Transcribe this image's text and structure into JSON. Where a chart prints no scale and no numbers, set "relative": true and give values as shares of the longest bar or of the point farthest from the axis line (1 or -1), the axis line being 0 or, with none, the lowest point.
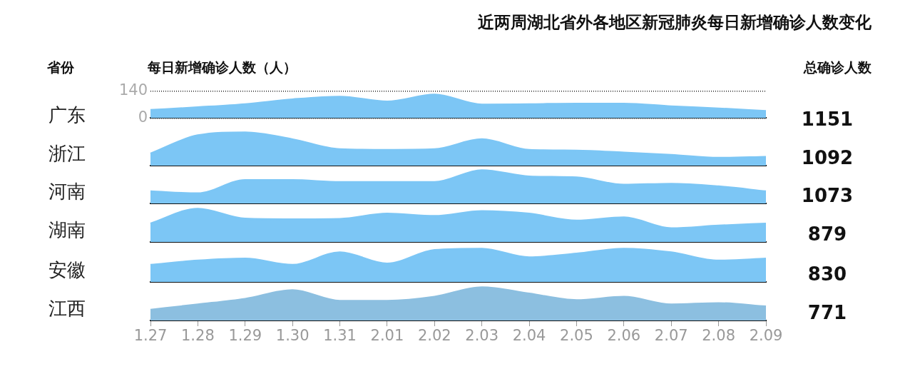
{
  "chart_data": [
    {
      "type": "area",
      "title": "近两周湖北省外各地区新冠肺炎每日新增确诊人数变化",
      "ylabel": "每日新增确诊人数（人）",
      "annotations": [
        "省份",
        "总确诊人数",
        "1151"
      ],
      "categories": [
        "1.27",
        "1.28",
        "1.29",
        "1.30",
        "1.31",
        "2.01",
        "2.02",
        "2.03",
        "2.04",
        "2.05",
        "2.06",
        "2.07",
        "2.08",
        "2.09"
      ],
      "ylim": [
        0,
        140
      ],
      "yticks": [
        0,
        140
      ],
      "grid": "y",
      "tick_labels": "y",
      "series": [
        {
          "name": "广东",
          "color": "#7cc6f5",
          "values": [
            41,
            55,
            71,
            96,
            110,
            85,
            121,
            69,
            71,
            74,
            74,
            60,
            49,
            36
          ]
        }
      ]
    },
    {
      "type": "area",
      "relative": true,
      "annotations": [
        "1092"
      ],
      "categories": [
        null,
        null,
        null,
        null,
        null,
        null,
        null,
        null,
        null,
        null,
        null,
        null,
        null,
        null
      ],
      "tick_labels": false,
      "series": [
        {
          "name": "浙江",
          "color": "#7cc6f5",
          "values": [
            0.36,
            0.91,
            1,
            0.79,
            0.49,
            0.47,
            0.49,
            0.79,
            0.47,
            0.45,
            0.39,
            0.32,
            0.23,
            0.26
          ]
        }
      ]
    },
    {
      "type": "area",
      "relative": true,
      "annotations": [
        "1073"
      ],
      "categories": [
        null,
        null,
        null,
        null,
        null,
        null,
        null,
        null,
        null,
        null,
        null,
        null,
        null,
        null
      ],
      "tick_labels": false,
      "series": [
        {
          "name": "河南",
          "color": "#7cc6f5",
          "values": [
            0.36,
            0.3,
            0.7,
            0.7,
            0.64,
            0.64,
            0.64,
            1,
            0.81,
            0.78,
            0.56,
            0.59,
            0.51,
            0.36
          ]
        }
      ]
    },
    {
      "type": "area",
      "relative": true,
      "annotations": [
        "879"
      ],
      "categories": [
        null,
        null,
        null,
        null,
        null,
        null,
        null,
        null,
        null,
        null,
        null,
        null,
        null,
        null
      ],
      "tick_labels": false,
      "series": [
        {
          "name": "湖南",
          "color": "#7cc6f5",
          "values": [
            0.55,
            1,
            0.7,
            0.68,
            0.69,
            0.85,
            0.78,
            0.93,
            0.85,
            0.64,
            0.74,
            0.41,
            0.49,
            0.55
          ]
        }
      ]
    },
    {
      "type": "area",
      "relative": true,
      "annotations": [
        "830"
      ],
      "categories": [
        null,
        null,
        null,
        null,
        null,
        null,
        null,
        null,
        null,
        null,
        null,
        null,
        null,
        null
      ],
      "tick_labels": false,
      "series": [
        {
          "name": "安徽",
          "color": "#7cc6f5",
          "values": [
            0.51,
            0.64,
            0.7,
            0.51,
            0.89,
            0.55,
            0.96,
            1,
            0.74,
            0.85,
            1,
            0.89,
            0.64,
            0.7
          ]
        }
      ]
    },
    {
      "type": "area",
      "relative": true,
      "annotations": [
        "771"
      ],
      "categories": [
        "1.27",
        "1.28",
        "1.29",
        "1.30",
        "1.31",
        "2.01",
        "2.02",
        "2.03",
        "2.04",
        "2.05",
        "2.06",
        "2.07",
        "2.08",
        "2.09"
      ],
      "tick_labels": "x",
      "series": [
        {
          "name": "江西",
          "color": "#8cbfe0",
          "values": [
            0.32,
            0.48,
            0.65,
            0.91,
            0.59,
            0.59,
            0.71,
            1,
            0.81,
            0.61,
            0.71,
            0.48,
            0.52,
            0.42
          ]
        }
      ]
    }
  ]
}
